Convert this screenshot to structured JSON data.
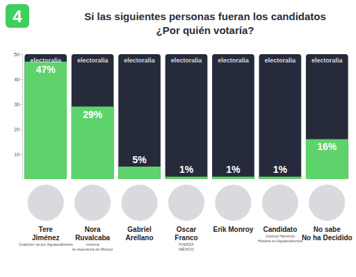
{
  "chart_data": {
    "type": "bar",
    "badge": "4",
    "title": "Si las siguientes personas fueran los candidatos\n¿Por quién votaría?",
    "categories": [
      "Tere\nJiménez",
      "Nora\nRuvalcaba",
      "Gabriel\nArellano",
      "Oscar\nFranco",
      "Erik Monroy",
      "Candidato",
      "No sabe\nNo ha Decidido"
    ],
    "party_labels": [
      "Coalición va por Aguascalientes",
      "morena\nla esperanza de México",
      null,
      "FUERZA\nMÉXICO",
      null,
      "Justicia Haremos\nHistoria en Aguascalientes",
      null
    ],
    "values": [
      47,
      29,
      5,
      1,
      1,
      1,
      16
    ],
    "value_labels": [
      "47%",
      "29%",
      "5%",
      "1%",
      "1%",
      "1%",
      "16%"
    ],
    "watermark": "electoralia",
    "color": "#5fd36b",
    "ylim": [
      0,
      50
    ],
    "yticks": [
      10,
      20,
      30,
      40,
      50
    ],
    "grid": false,
    "data_labels": true
  }
}
